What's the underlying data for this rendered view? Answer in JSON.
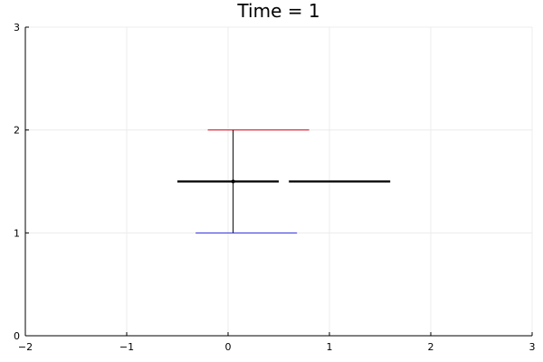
{
  "chart_data": {
    "type": "line",
    "title": "Time = 1",
    "xlabel": "",
    "ylabel": "",
    "xlim": [
      -2,
      3
    ],
    "ylim": [
      0,
      3
    ],
    "x_ticks": [
      -2,
      -1,
      0,
      1,
      2,
      3
    ],
    "y_ticks": [
      0,
      1,
      2,
      3
    ],
    "x_tick_labels": [
      "−2",
      "−1",
      "0",
      "1",
      "2",
      "3"
    ],
    "y_tick_labels": [
      "0",
      "1",
      "2",
      "3"
    ],
    "grid": true,
    "legend": "none",
    "series": [
      {
        "color": "#e0001a",
        "style": "thin",
        "x": [
          -0.2,
          0.8
        ],
        "y": [
          2,
          2
        ]
      },
      {
        "color": "#2d2de0",
        "style": "thin",
        "x": [
          -0.32,
          0.68
        ],
        "y": [
          1,
          1
        ]
      },
      {
        "color": "#000000",
        "style": "thin",
        "x": [
          0.05,
          0.05
        ],
        "y": [
          1,
          2
        ]
      },
      {
        "color": "#000000",
        "style": "thick",
        "x": [
          -0.5,
          0.5
        ],
        "y": [
          1.5,
          1.5
        ]
      },
      {
        "color": "#000000",
        "style": "thick",
        "x": [
          0.6,
          1.6
        ],
        "y": [
          1.5,
          1.5
        ]
      }
    ],
    "points": [
      {
        "x": 0.05,
        "y": 1.5,
        "color": "#000000"
      }
    ]
  }
}
